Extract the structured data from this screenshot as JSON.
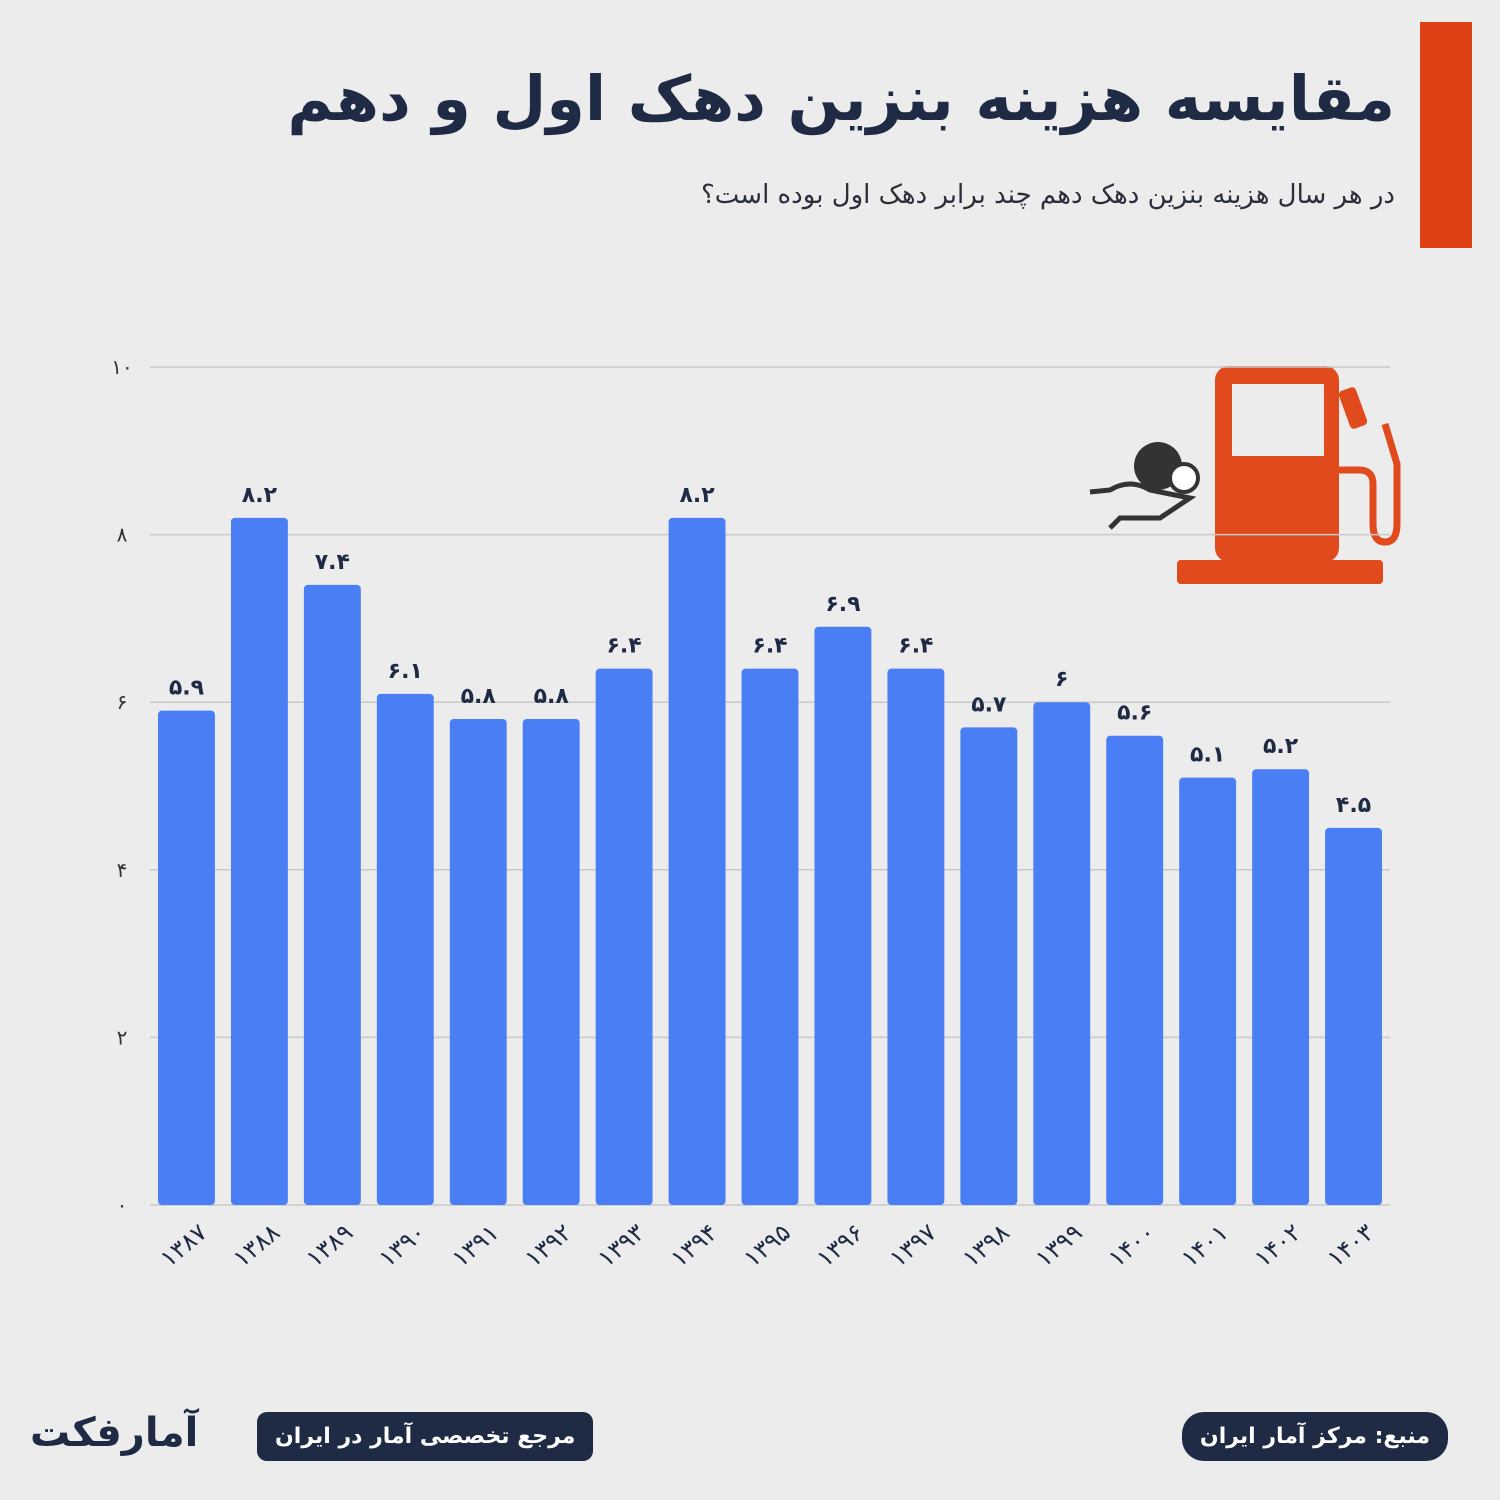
{
  "header": {
    "title": "مقایسه هزینه بنزین دهک اول و دهم",
    "subtitle": "در  هر سال هزینه بنزین دهک دهم چند برابر دهک اول بوده است؟"
  },
  "chart_data": {
    "type": "bar",
    "categories": [
      "۱۳۸۷",
      "۱۳۸۸",
      "۱۳۸۹",
      "۱۳۹۰",
      "۱۳۹۱",
      "۱۳۹۲",
      "۱۳۹۳",
      "۱۳۹۴",
      "۱۳۹۵",
      "۱۳۹۶",
      "۱۳۹۷",
      "۱۳۹۸",
      "۱۳۹۹",
      "۱۴۰۰",
      "۱۴۰۱",
      "۱۴۰۲",
      "۱۴۰۳"
    ],
    "values": [
      5.9,
      8.2,
      7.4,
      6.1,
      5.8,
      5.8,
      6.4,
      8.2,
      6.4,
      6.9,
      6.4,
      5.7,
      6,
      5.6,
      5.1,
      5.2,
      4.5
    ],
    "value_labels": [
      "۵.۹",
      "۸.۲",
      "۷.۴",
      "۶.۱",
      "۵.۸",
      "۵.۸",
      "۶.۴",
      "۸.۲",
      "۶.۴",
      "۶.۹",
      "۶.۴",
      "۵.۷",
      "۶",
      "۵.۶",
      "۵.۱",
      "۵.۲",
      "۴.۵"
    ],
    "color": "#4a7ef5",
    "ylim": [
      0,
      10
    ],
    "yticks": [
      {
        "value": 0,
        "label": "۰"
      },
      {
        "value": 2,
        "label": "۲"
      },
      {
        "value": 4,
        "label": "۴"
      },
      {
        "value": 6,
        "label": "۶"
      },
      {
        "value": 8,
        "label": "۸"
      },
      {
        "value": 10,
        "label": "۱۰"
      }
    ],
    "grid": true
  },
  "footer": {
    "brand": "آمارفکت",
    "tagline": "مرجع تخصصی آمار در ایران",
    "source": "منبع: مرکز آمار ایران"
  }
}
